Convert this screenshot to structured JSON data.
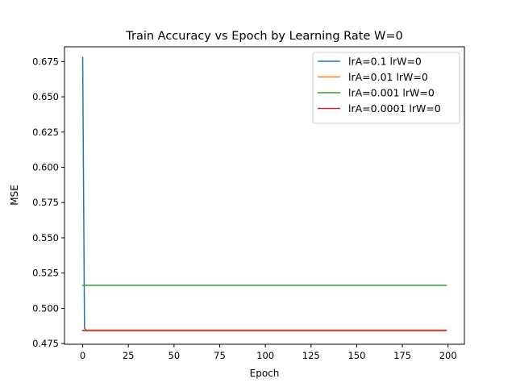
{
  "chart_data": {
    "type": "line",
    "title": "Train Accuracy vs Epoch by Learning Rate W=0",
    "xlabel": "Epoch",
    "ylabel": "MSE",
    "xlim": [
      -9.95,
      208.95
    ],
    "ylim": [
      0.4745,
      0.6855
    ],
    "xticks": [
      0,
      25,
      50,
      75,
      100,
      125,
      150,
      175,
      200
    ],
    "yticks": [
      0.475,
      0.5,
      0.525,
      0.55,
      0.575,
      0.6,
      0.625,
      0.65,
      0.675
    ],
    "ytick_labels": [
      "0.475",
      "0.500",
      "0.525",
      "0.550",
      "0.575",
      "0.600",
      "0.625",
      "0.650",
      "0.675"
    ],
    "legend_position": "top-right",
    "grid": false,
    "series": [
      {
        "name": "lrA=0.1 lrW=0",
        "color": "#1f77b4",
        "x": [
          0,
          1,
          2,
          199
        ],
        "y": [
          0.678,
          0.486,
          0.4845,
          0.4845
        ]
      },
      {
        "name": "lrA=0.01 lrW=0",
        "color": "#ff7f0e",
        "x": [
          0,
          199
        ],
        "y": [
          0.4845,
          0.4845
        ]
      },
      {
        "name": "lrA=0.001 lrW=0",
        "color": "#2ca02c",
        "x": [
          0,
          199
        ],
        "y": [
          0.5163,
          0.5163
        ]
      },
      {
        "name": "lrA=0.0001 lrW=0",
        "color": "#d62728",
        "x": [
          0,
          199
        ],
        "y": [
          0.4842,
          0.4842
        ]
      }
    ]
  }
}
